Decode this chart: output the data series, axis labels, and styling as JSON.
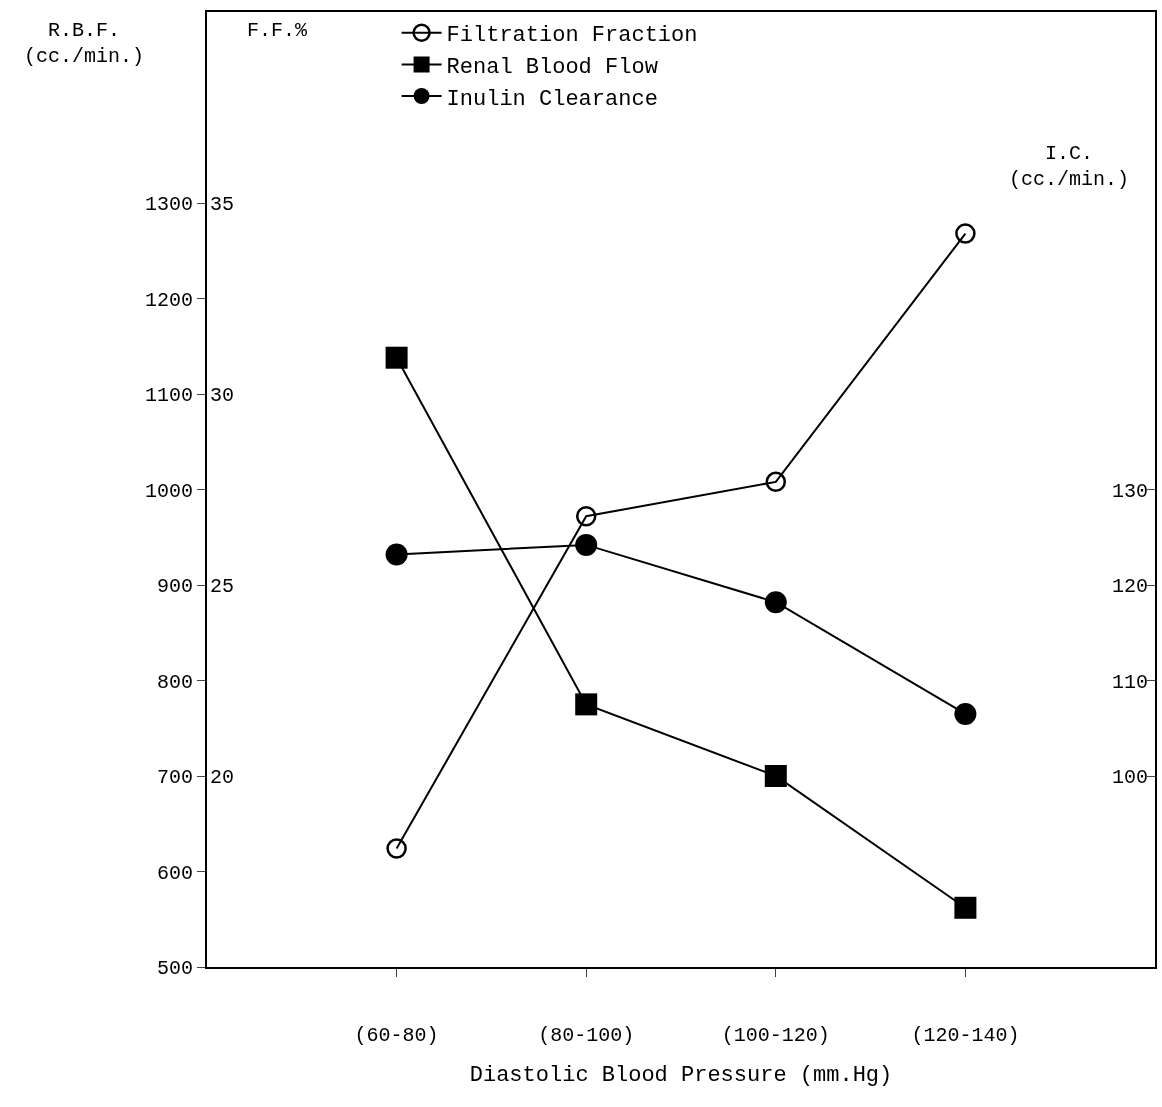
{
  "chart_data": {
    "type": "line",
    "xlabel": "Diastolic Blood Pressure (mm.Hg)",
    "ylabel": "R.B.F.\n(cc./min.)",
    "y2label": "F.F.%",
    "y3label": "I.C.\n(cc./min.)",
    "categories": [
      "(60-80)",
      "(80-100)",
      "(100-120)",
      "(120-140)"
    ],
    "series": [
      {
        "name": "Filtration Fraction",
        "color": "#000000",
        "marker": "circle-open",
        "axis": "y2",
        "values": [
          18.1,
          26.8,
          27.7,
          34.2
        ]
      },
      {
        "name": "Renal Blood Flow",
        "color": "#000000",
        "marker": "square",
        "axis": "y",
        "values": [
          1138,
          775,
          700,
          562
        ]
      },
      {
        "name": "Inulin Clearance",
        "color": "#000000",
        "marker": "circle",
        "axis": "y3",
        "values": [
          123.2,
          124.2,
          118.2,
          106.5
        ]
      }
    ],
    "ylim": [
      500,
      1500
    ],
    "yticks": [
      500,
      600,
      700,
      800,
      900,
      1000,
      1100,
      1200,
      1300
    ],
    "y2lim": [
      15,
      40
    ],
    "y2ticks": [
      20,
      25,
      30,
      35
    ],
    "y3lim": [
      80,
      180
    ],
    "y3ticks": [
      100,
      110,
      120,
      130
    ],
    "grid": false,
    "legend": "top left",
    "line_style": "solid"
  }
}
